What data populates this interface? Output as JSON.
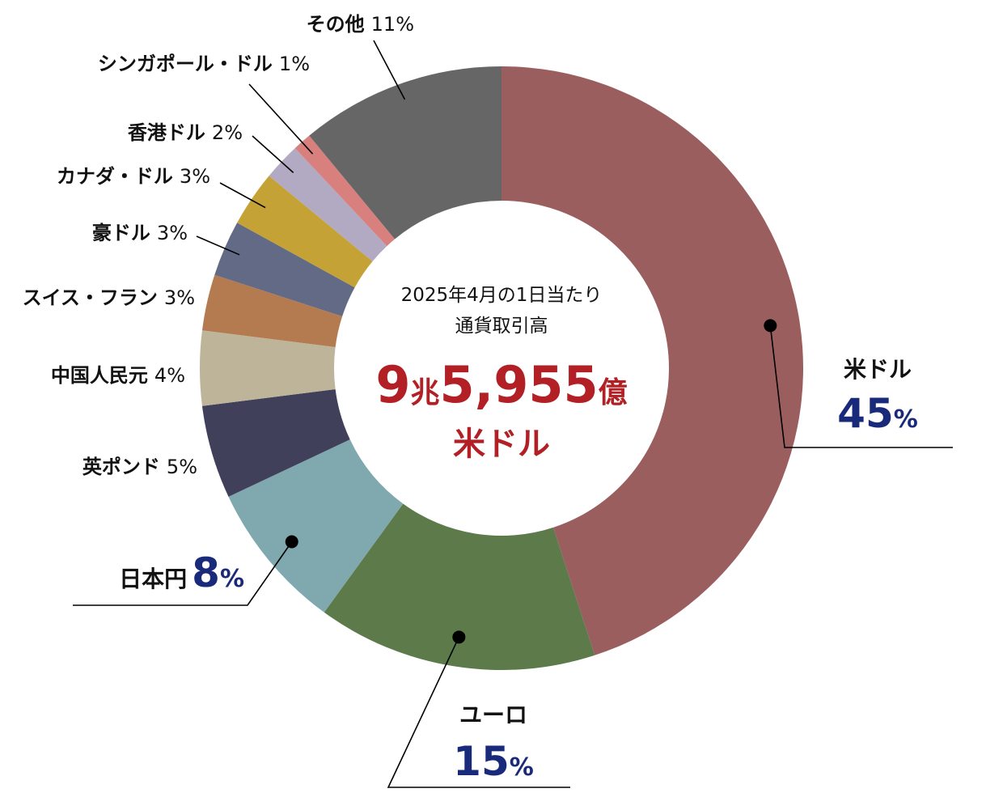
{
  "chart_data": {
    "type": "pie",
    "donut": true,
    "center": {
      "caption_line1": "2025年4月の1日当たり",
      "caption_line2": "通貨取引高",
      "total_num1": "9",
      "total_unit1": "兆",
      "total_num2": "5,955",
      "total_unit2": "億",
      "total_currency": "米ドル"
    },
    "slices": [
      {
        "name": "米ドル",
        "value": 45,
        "value_label": "45",
        "pct_sign": "%",
        "color": "#9b5e5e"
      },
      {
        "name": "ユーロ",
        "value": 15,
        "value_label": "15",
        "pct_sign": "%",
        "color": "#5c7a4a"
      },
      {
        "name": "日本円",
        "value": 8,
        "value_label": "8",
        "pct_sign": "%",
        "color": "#7fa8af"
      },
      {
        "name": "英ポンド",
        "value": 5,
        "value_label": "5%",
        "color": "#40405a"
      },
      {
        "name": "中国人民元",
        "value": 4,
        "value_label": "4%",
        "color": "#bdb49a"
      },
      {
        "name": "スイス・フラン",
        "value": 3,
        "value_label": "3%",
        "color": "#b47b50"
      },
      {
        "name": "豪ドル",
        "value": 3,
        "value_label": "3%",
        "color": "#626a85"
      },
      {
        "name": "カナダ・ドル",
        "value": 3,
        "value_label": "3%",
        "color": "#c4a235"
      },
      {
        "name": "香港ドル",
        "value": 2,
        "value_label": "2%",
        "color": "#b2aac3"
      },
      {
        "name": "シンガポール・ドル",
        "value": 1,
        "value_label": "1%",
        "color": "#d8807e"
      },
      {
        "name": "その他",
        "value": 11,
        "value_label": "11%",
        "color": "#666666"
      }
    ]
  }
}
